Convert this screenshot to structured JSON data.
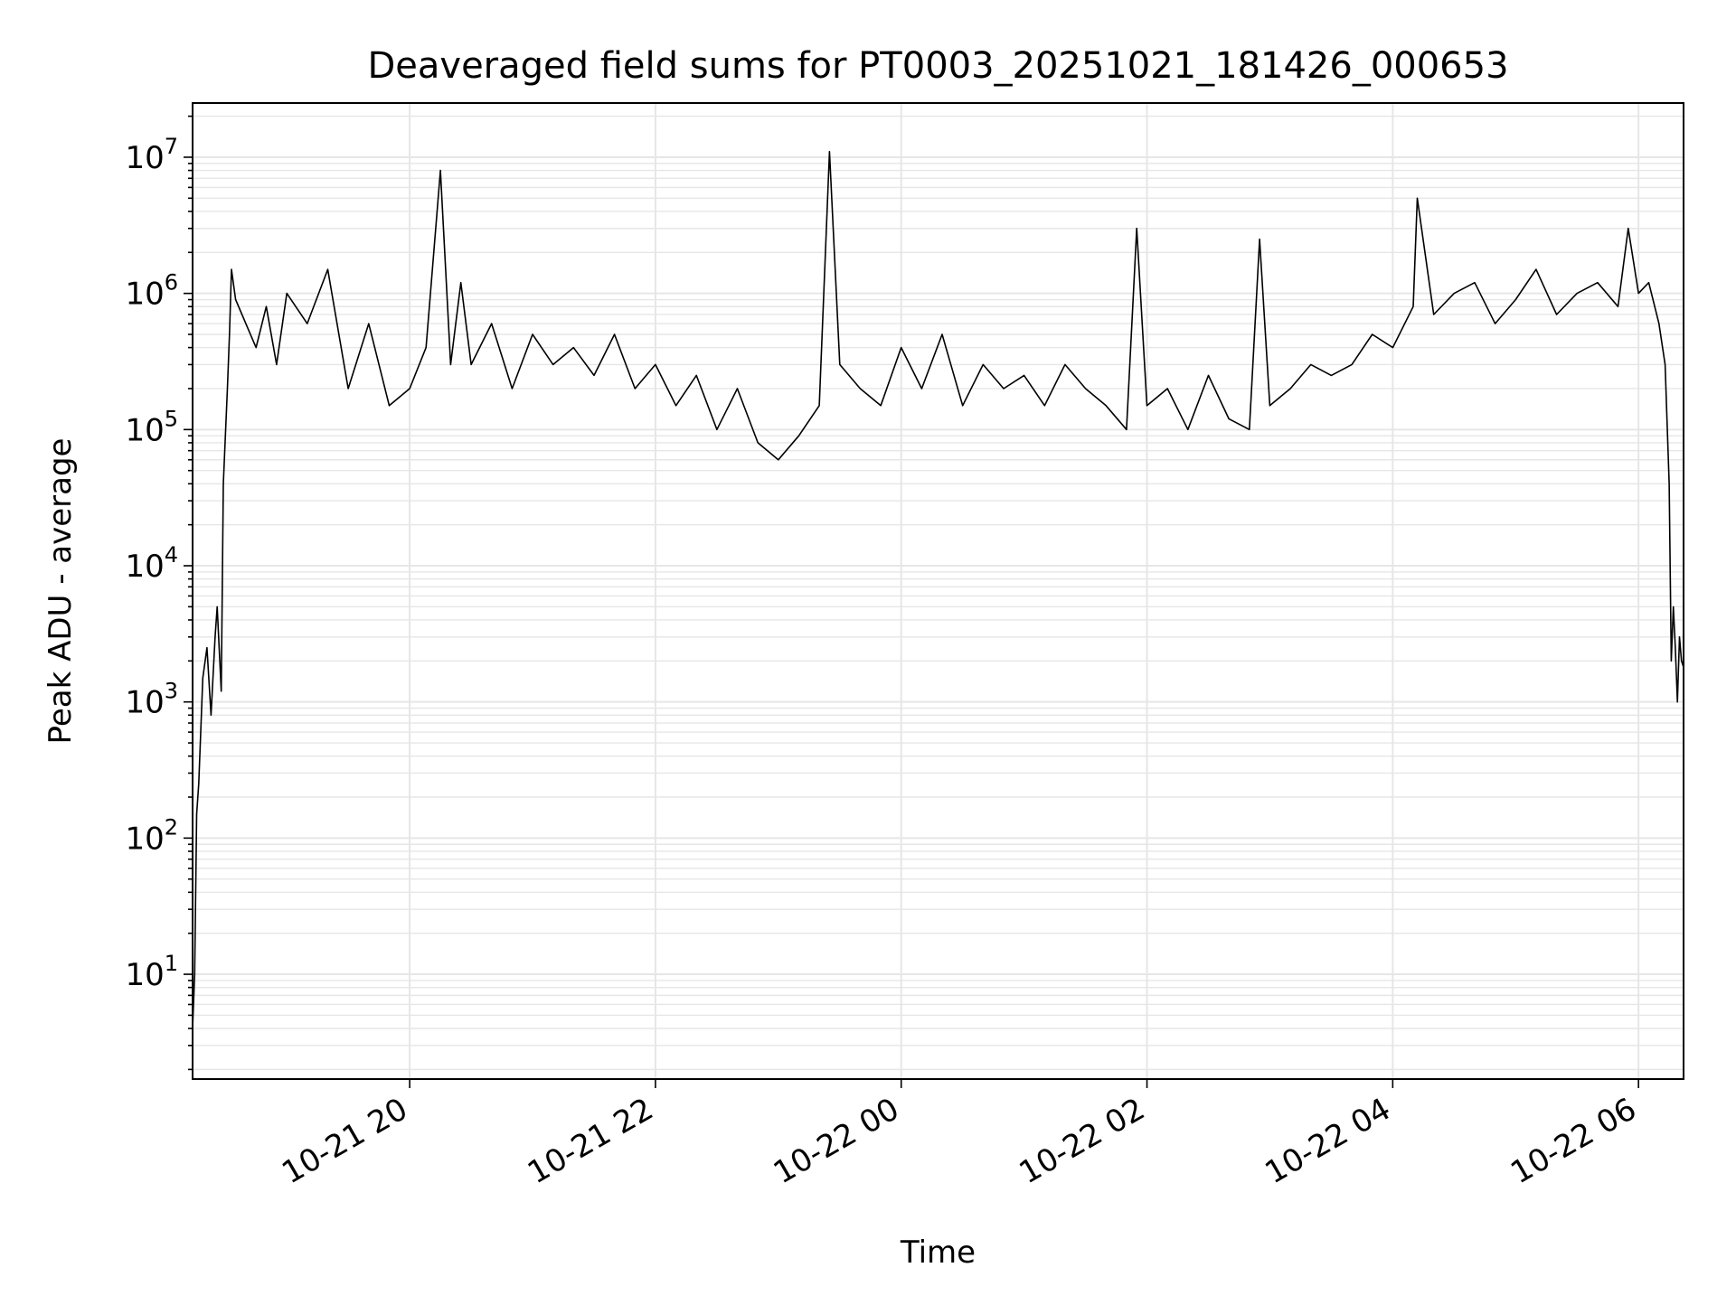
{
  "chart_data": {
    "type": "line",
    "title": "Deaveraged field sums for PT0003_20251021_181426_000653",
    "xlabel": "Time",
    "ylabel": "Peak ADU - average",
    "y_scale": "log",
    "ylim": [
      1.7,
      25000000
    ],
    "xlim": [
      "2025-10-21 18:14",
      "2025-10-22 06:22"
    ],
    "x_ticks": [
      {
        "value": "2025-10-21 20:00",
        "label": "10-21 20"
      },
      {
        "value": "2025-10-21 22:00",
        "label": "10-21 22"
      },
      {
        "value": "2025-10-22 00:00",
        "label": "10-22 00"
      },
      {
        "value": "2025-10-22 02:00",
        "label": "10-22 02"
      },
      {
        "value": "2025-10-22 04:00",
        "label": "10-22 04"
      },
      {
        "value": "2025-10-22 06:00",
        "label": "10-22 06"
      }
    ],
    "y_ticks": [
      {
        "value": 10,
        "base": "10",
        "exp": "1"
      },
      {
        "value": 100,
        "base": "10",
        "exp": "2"
      },
      {
        "value": 1000,
        "base": "10",
        "exp": "3"
      },
      {
        "value": 10000,
        "base": "10",
        "exp": "4"
      },
      {
        "value": 100000,
        "base": "10",
        "exp": "5"
      },
      {
        "value": 1000000,
        "base": "10",
        "exp": "6"
      },
      {
        "value": 10000000,
        "base": "10",
        "exp": "7"
      }
    ],
    "grid": true,
    "line_color": "#000000",
    "grid_color": "#e6e6e6",
    "series": [
      {
        "x": [
          "2025-10-21 18:14",
          "2025-10-21 18:15",
          "2025-10-21 18:16",
          "2025-10-21 18:17",
          "2025-10-21 18:19",
          "2025-10-21 18:21",
          "2025-10-21 18:23",
          "2025-10-21 18:25",
          "2025-10-21 18:26",
          "2025-10-21 18:28",
          "2025-10-21 18:29",
          "2025-10-21 18:31",
          "2025-10-21 18:32",
          "2025-10-21 18:33",
          "2025-10-21 18:35",
          "2025-10-21 18:40",
          "2025-10-21 18:45",
          "2025-10-21 18:50",
          "2025-10-21 18:55",
          "2025-10-21 19:00",
          "2025-10-21 19:10",
          "2025-10-21 19:20",
          "2025-10-21 19:30",
          "2025-10-21 19:40",
          "2025-10-21 19:50",
          "2025-10-21 20:00",
          "2025-10-21 20:08",
          "2025-10-21 20:15",
          "2025-10-21 20:20",
          "2025-10-21 20:25",
          "2025-10-21 20:30",
          "2025-10-21 20:40",
          "2025-10-21 20:50",
          "2025-10-21 21:00",
          "2025-10-21 21:10",
          "2025-10-21 21:20",
          "2025-10-21 21:30",
          "2025-10-21 21:40",
          "2025-10-21 21:50",
          "2025-10-21 22:00",
          "2025-10-21 22:10",
          "2025-10-21 22:20",
          "2025-10-21 22:30",
          "2025-10-21 22:40",
          "2025-10-21 22:50",
          "2025-10-21 23:00",
          "2025-10-21 23:10",
          "2025-10-21 23:20",
          "2025-10-21 23:25",
          "2025-10-21 23:30",
          "2025-10-21 23:40",
          "2025-10-21 23:50",
          "2025-10-22 00:00",
          "2025-10-22 00:10",
          "2025-10-22 00:20",
          "2025-10-22 00:30",
          "2025-10-22 00:40",
          "2025-10-22 00:50",
          "2025-10-22 01:00",
          "2025-10-22 01:10",
          "2025-10-22 01:20",
          "2025-10-22 01:30",
          "2025-10-22 01:40",
          "2025-10-22 01:50",
          "2025-10-22 01:55",
          "2025-10-22 02:00",
          "2025-10-22 02:10",
          "2025-10-22 02:20",
          "2025-10-22 02:30",
          "2025-10-22 02:40",
          "2025-10-22 02:50",
          "2025-10-22 02:55",
          "2025-10-22 03:00",
          "2025-10-22 03:10",
          "2025-10-22 03:20",
          "2025-10-22 03:30",
          "2025-10-22 03:40",
          "2025-10-22 03:50",
          "2025-10-22 04:00",
          "2025-10-22 04:10",
          "2025-10-22 04:12",
          "2025-10-22 04:20",
          "2025-10-22 04:30",
          "2025-10-22 04:40",
          "2025-10-22 04:50",
          "2025-10-22 05:00",
          "2025-10-22 05:10",
          "2025-10-22 05:20",
          "2025-10-22 05:30",
          "2025-10-22 05:40",
          "2025-10-22 05:50",
          "2025-10-22 05:55",
          "2025-10-22 06:00",
          "2025-10-22 06:05",
          "2025-10-22 06:10",
          "2025-10-22 06:13",
          "2025-10-22 06:15",
          "2025-10-22 06:16",
          "2025-10-22 06:17",
          "2025-10-22 06:18",
          "2025-10-22 06:19",
          "2025-10-22 06:20",
          "2025-10-22 06:21",
          "2025-10-22 06:22"
        ],
        "y": [
          4,
          10,
          150,
          250,
          1500,
          2500,
          800,
          3000,
          5000,
          1200,
          40000,
          200000,
          500000,
          1500000,
          900000,
          600000,
          400000,
          800000,
          300000,
          1000000,
          600000,
          1500000,
          200000,
          600000,
          150000,
          200000,
          400000,
          8000000,
          300000,
          1200000,
          300000,
          600000,
          200000,
          500000,
          300000,
          400000,
          250000,
          500000,
          200000,
          300000,
          150000,
          250000,
          100000,
          200000,
          80000,
          60000,
          90000,
          150000,
          11000000,
          300000,
          200000,
          150000,
          400000,
          200000,
          500000,
          150000,
          300000,
          200000,
          250000,
          150000,
          300000,
          200000,
          150000,
          100000,
          3000000,
          150000,
          200000,
          100000,
          250000,
          120000,
          100000,
          2500000,
          150000,
          200000,
          300000,
          250000,
          300000,
          500000,
          400000,
          800000,
          5000000,
          700000,
          1000000,
          1200000,
          600000,
          900000,
          1500000,
          700000,
          1000000,
          1200000,
          800000,
          3000000,
          1000000,
          1200000,
          600000,
          300000,
          40000,
          2000,
          5000,
          2500,
          1000,
          3000,
          2000,
          1800
        ]
      }
    ]
  }
}
